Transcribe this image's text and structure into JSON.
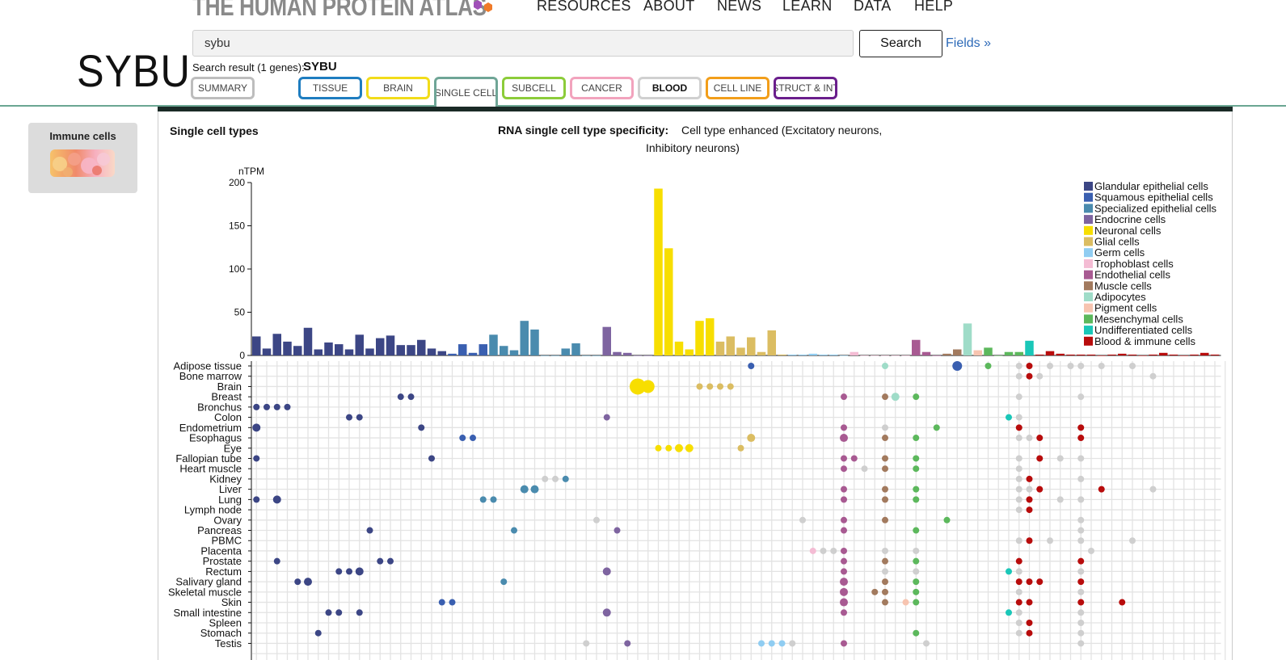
{
  "header": {
    "logo_text": "THE HUMAN PROTEIN ATLAS",
    "nav": [
      "RESOURCES",
      "ABOUT",
      "NEWS",
      "LEARN",
      "DATA",
      "HELP"
    ],
    "gene_title": "SYBU",
    "search": {
      "value": "sybu",
      "button_label": "Search",
      "fields_link": "Fields »"
    },
    "result_prefix": "Search result (1 genes):",
    "result_gene": "SYBU",
    "tabs": [
      {
        "label": "SUMMARY",
        "color": "#bdbdbd"
      },
      {
        "label": "TISSUE",
        "color": "#1e7dc0"
      },
      {
        "label": "BRAIN",
        "color": "#f2dc1a"
      },
      {
        "label": "SINGLE CELL",
        "color": "#6fa596"
      },
      {
        "label": "SUBCELL",
        "color": "#8ccc3a"
      },
      {
        "label": "CANCER",
        "color": "#f2a3bd"
      },
      {
        "label": "BLOOD",
        "color": "#d0d0d0"
      },
      {
        "label": "CELL LINE",
        "color": "#f29e1a"
      },
      {
        "label": "STRUCT & INT",
        "color": "#6a1e8c"
      }
    ]
  },
  "sidebar": {
    "label": "Immune cells"
  },
  "main": {
    "section_title": "Single cell types",
    "specificity_label": "RNA single cell type specificity:",
    "specificity_value_1": "Cell type enhanced (Excitatory neurons,",
    "specificity_value_2": "Inhibitory neurons)"
  },
  "chart_data": {
    "type": "bar",
    "ylabel": "nTPM",
    "ylim": [
      0,
      200
    ],
    "yticks": [
      0,
      50,
      100,
      150,
      200
    ],
    "groups": [
      {
        "name": "Glandular epithelial cells",
        "color": "#3c4685"
      },
      {
        "name": "Squamous epithelial cells",
        "color": "#3a5fb0"
      },
      {
        "name": "Specialized epithelial cells",
        "color": "#4a8bae"
      },
      {
        "name": "Endocrine cells",
        "color": "#7e64a0"
      },
      {
        "name": "Neuronal cells",
        "color": "#f7de00"
      },
      {
        "name": "Glial cells",
        "color": "#dbbd62"
      },
      {
        "name": "Germ cells",
        "color": "#90cdf2"
      },
      {
        "name": "Trophoblast cells",
        "color": "#f4bcd4"
      },
      {
        "name": "Endothelial cells",
        "color": "#a85a92"
      },
      {
        "name": "Muscle cells",
        "color": "#a27a5e"
      },
      {
        "name": "Adipocytes",
        "color": "#9fdcc8"
      },
      {
        "name": "Pigment cells",
        "color": "#f7c4b0"
      },
      {
        "name": "Mesenchymal cells",
        "color": "#5cb85c"
      },
      {
        "name": "Undifferentiated cells",
        "color": "#1ac7b8"
      },
      {
        "name": "Blood & immune cells",
        "color": "#b80c0c"
      }
    ],
    "values": [
      22,
      8,
      25,
      16,
      11,
      32,
      7,
      15,
      13,
      7,
      24,
      8,
      20,
      23,
      12,
      12,
      18,
      8,
      5,
      2,
      13,
      3,
      13,
      24,
      11,
      6,
      40,
      30,
      0,
      0,
      8,
      14,
      0,
      0,
      33,
      4,
      3,
      0,
      0,
      193,
      124,
      16,
      7,
      40,
      43,
      16,
      22,
      9,
      21,
      4,
      29,
      1,
      1,
      1,
      2,
      1,
      1,
      0,
      4,
      0,
      0,
      0,
      0,
      0,
      18,
      4,
      0,
      2,
      7,
      37,
      6,
      9,
      0,
      4,
      4,
      17,
      1,
      5,
      2,
      1,
      1,
      1,
      0,
      1,
      2,
      1,
      0,
      1,
      3,
      1,
      0,
      1,
      3,
      1
    ],
    "bar_groups": [
      0,
      0,
      0,
      0,
      0,
      0,
      0,
      0,
      0,
      0,
      0,
      0,
      0,
      0,
      0,
      0,
      0,
      0,
      0,
      1,
      1,
      1,
      1,
      2,
      2,
      2,
      2,
      2,
      2,
      2,
      2,
      2,
      2,
      2,
      3,
      3,
      3,
      3,
      3,
      4,
      4,
      4,
      4,
      4,
      4,
      5,
      5,
      5,
      5,
      5,
      5,
      5,
      6,
      6,
      6,
      6,
      6,
      6,
      7,
      7,
      7,
      7,
      7,
      7,
      8,
      8,
      8,
      9,
      9,
      10,
      11,
      12,
      12,
      12,
      12,
      13,
      14,
      14,
      14,
      14,
      14,
      14,
      14,
      14,
      14,
      14,
      14,
      14,
      14,
      14,
      14,
      14,
      14,
      14
    ],
    "tissues": [
      "Adipose tissue",
      "Bone marrow",
      "Brain",
      "Breast",
      "Bronchus",
      "Colon",
      "Endometrium",
      "Esophagus",
      "Eye",
      "Fallopian tube",
      "Heart muscle",
      "Kidney",
      "Liver",
      "Lung",
      "Lymph node",
      "Ovary",
      "Pancreas",
      "PBMC",
      "Placenta",
      "Prostate",
      "Rectum",
      "Salivary gland",
      "Skeletal muscle",
      "Skin",
      "Small intestine",
      "Spleen",
      "Stomach",
      "Testis"
    ],
    "dots": [
      [
        0,
        48,
        1,
        4
      ],
      [
        0,
        61,
        10,
        4
      ],
      [
        0,
        68,
        1,
        6
      ],
      [
        0,
        71,
        12,
        4
      ],
      [
        0,
        74,
        0,
        4
      ],
      [
        0,
        75,
        14,
        4
      ],
      [
        0,
        77,
        0,
        4
      ],
      [
        0,
        79,
        0,
        4
      ],
      [
        0,
        80,
        0,
        4
      ],
      [
        0,
        82,
        0,
        4
      ],
      [
        0,
        85,
        0,
        4
      ],
      [
        1,
        74,
        0,
        4
      ],
      [
        1,
        75,
        14,
        4
      ],
      [
        1,
        76,
        0,
        4
      ],
      [
        1,
        87,
        0,
        4
      ],
      [
        2,
        37,
        4,
        10
      ],
      [
        2,
        38,
        4,
        8
      ],
      [
        2,
        43,
        5,
        4
      ],
      [
        2,
        44,
        5,
        4
      ],
      [
        2,
        45,
        5,
        4
      ],
      [
        2,
        46,
        5,
        4
      ],
      [
        3,
        14,
        0,
        4
      ],
      [
        3,
        15,
        0,
        4
      ],
      [
        3,
        57,
        8,
        4
      ],
      [
        3,
        61,
        9,
        4
      ],
      [
        3,
        62,
        10,
        5
      ],
      [
        3,
        64,
        12,
        4
      ],
      [
        3,
        74,
        0,
        4
      ],
      [
        3,
        80,
        0,
        4
      ],
      [
        4,
        0,
        0,
        4
      ],
      [
        4,
        1,
        0,
        4
      ],
      [
        4,
        2,
        0,
        4
      ],
      [
        4,
        3,
        0,
        4
      ],
      [
        5,
        9,
        0,
        4
      ],
      [
        5,
        10,
        0,
        4
      ],
      [
        5,
        34,
        3,
        4
      ],
      [
        5,
        73,
        13,
        4
      ],
      [
        5,
        74,
        0,
        4
      ],
      [
        6,
        0,
        0,
        5
      ],
      [
        6,
        16,
        0,
        4
      ],
      [
        6,
        57,
        8,
        4
      ],
      [
        6,
        61,
        0,
        4
      ],
      [
        6,
        66,
        12,
        4
      ],
      [
        6,
        74,
        14,
        4
      ],
      [
        6,
        80,
        14,
        4
      ],
      [
        7,
        20,
        1,
        4
      ],
      [
        7,
        21,
        1,
        4
      ],
      [
        7,
        48,
        5,
        5
      ],
      [
        7,
        57,
        8,
        5
      ],
      [
        7,
        61,
        9,
        4
      ],
      [
        7,
        64,
        12,
        4
      ],
      [
        7,
        74,
        0,
        4
      ],
      [
        7,
        75,
        0,
        4
      ],
      [
        7,
        76,
        14,
        4
      ],
      [
        7,
        80,
        14,
        4
      ],
      [
        8,
        39,
        4,
        4
      ],
      [
        8,
        40,
        4,
        4
      ],
      [
        8,
        41,
        4,
        5
      ],
      [
        8,
        42,
        4,
        5
      ],
      [
        8,
        47,
        5,
        4
      ],
      [
        9,
        0,
        0,
        4
      ],
      [
        9,
        17,
        0,
        4
      ],
      [
        9,
        57,
        8,
        4
      ],
      [
        9,
        58,
        8,
        4
      ],
      [
        9,
        61,
        9,
        4
      ],
      [
        9,
        64,
        12,
        4
      ],
      [
        9,
        74,
        0,
        4
      ],
      [
        9,
        76,
        14,
        4
      ],
      [
        9,
        78,
        0,
        4
      ],
      [
        9,
        80,
        0,
        4
      ],
      [
        10,
        57,
        8,
        4
      ],
      [
        10,
        59,
        0,
        4
      ],
      [
        10,
        61,
        9,
        4
      ],
      [
        10,
        64,
        12,
        4
      ],
      [
        10,
        74,
        0,
        4
      ],
      [
        11,
        28,
        0,
        4
      ],
      [
        11,
        29,
        0,
        4
      ],
      [
        11,
        30,
        2,
        4
      ],
      [
        11,
        74,
        0,
        4
      ],
      [
        11,
        75,
        14,
        4
      ],
      [
        11,
        80,
        0,
        4
      ],
      [
        12,
        26,
        2,
        5
      ],
      [
        12,
        27,
        2,
        5
      ],
      [
        12,
        57,
        8,
        4
      ],
      [
        12,
        61,
        9,
        4
      ],
      [
        12,
        64,
        12,
        4
      ],
      [
        12,
        74,
        0,
        4
      ],
      [
        12,
        75,
        0,
        4
      ],
      [
        12,
        76,
        14,
        4
      ],
      [
        12,
        82,
        14,
        4
      ],
      [
        12,
        87,
        0,
        4
      ],
      [
        13,
        0,
        0,
        4
      ],
      [
        13,
        2,
        0,
        5
      ],
      [
        13,
        22,
        2,
        4
      ],
      [
        13,
        23,
        2,
        4
      ],
      [
        13,
        57,
        8,
        4
      ],
      [
        13,
        61,
        9,
        4
      ],
      [
        13,
        64,
        12,
        4
      ],
      [
        13,
        74,
        0,
        4
      ],
      [
        13,
        75,
        14,
        4
      ],
      [
        13,
        78,
        0,
        4
      ],
      [
        13,
        80,
        0,
        4
      ],
      [
        14,
        74,
        0,
        4
      ],
      [
        14,
        75,
        14,
        4
      ],
      [
        15,
        33,
        0,
        4
      ],
      [
        15,
        53,
        0,
        4
      ],
      [
        15,
        57,
        8,
        4
      ],
      [
        15,
        61,
        9,
        4
      ],
      [
        15,
        67,
        12,
        4
      ],
      [
        15,
        80,
        0,
        4
      ],
      [
        16,
        11,
        0,
        4
      ],
      [
        16,
        25,
        2,
        4
      ],
      [
        16,
        35,
        3,
        4
      ],
      [
        16,
        57,
        8,
        4
      ],
      [
        16,
        64,
        12,
        4
      ],
      [
        16,
        80,
        0,
        4
      ],
      [
        17,
        74,
        0,
        4
      ],
      [
        17,
        75,
        14,
        4
      ],
      [
        17,
        77,
        0,
        4
      ],
      [
        17,
        80,
        0,
        4
      ],
      [
        17,
        85,
        0,
        4
      ],
      [
        18,
        54,
        7,
        4
      ],
      [
        18,
        55,
        0,
        4
      ],
      [
        18,
        56,
        0,
        4
      ],
      [
        18,
        57,
        8,
        4
      ],
      [
        18,
        61,
        0,
        4
      ],
      [
        18,
        64,
        0,
        4
      ],
      [
        18,
        81,
        0,
        4
      ],
      [
        19,
        2,
        0,
        4
      ],
      [
        19,
        12,
        0,
        4
      ],
      [
        19,
        13,
        0,
        4
      ],
      [
        19,
        57,
        8,
        4
      ],
      [
        19,
        61,
        9,
        4
      ],
      [
        19,
        64,
        12,
        4
      ],
      [
        19,
        74,
        14,
        4
      ],
      [
        19,
        80,
        14,
        4
      ],
      [
        20,
        8,
        0,
        4
      ],
      [
        20,
        9,
        0,
        4
      ],
      [
        20,
        10,
        0,
        5
      ],
      [
        20,
        34,
        3,
        5
      ],
      [
        20,
        57,
        8,
        4
      ],
      [
        20,
        61,
        0,
        4
      ],
      [
        20,
        64,
        0,
        4
      ],
      [
        20,
        73,
        13,
        4
      ],
      [
        20,
        74,
        0,
        4
      ],
      [
        20,
        80,
        0,
        4
      ],
      [
        21,
        4,
        0,
        4
      ],
      [
        21,
        5,
        0,
        5
      ],
      [
        21,
        24,
        2,
        4
      ],
      [
        21,
        57,
        8,
        5
      ],
      [
        21,
        61,
        9,
        4
      ],
      [
        21,
        64,
        12,
        4
      ],
      [
        21,
        74,
        14,
        4
      ],
      [
        21,
        75,
        14,
        4
      ],
      [
        21,
        76,
        14,
        4
      ],
      [
        21,
        80,
        14,
        4
      ],
      [
        22,
        57,
        8,
        5
      ],
      [
        22,
        60,
        9,
        4
      ],
      [
        22,
        61,
        9,
        4
      ],
      [
        22,
        64,
        12,
        4
      ],
      [
        22,
        74,
        0,
        4
      ],
      [
        22,
        80,
        0,
        4
      ],
      [
        23,
        18,
        1,
        4
      ],
      [
        23,
        19,
        1,
        4
      ],
      [
        23,
        57,
        8,
        5
      ],
      [
        23,
        61,
        9,
        4
      ],
      [
        23,
        63,
        11,
        4
      ],
      [
        23,
        64,
        12,
        4
      ],
      [
        23,
        74,
        14,
        4
      ],
      [
        23,
        75,
        14,
        4
      ],
      [
        23,
        80,
        14,
        4
      ],
      [
        23,
        84,
        14,
        4
      ],
      [
        24,
        7,
        0,
        4
      ],
      [
        24,
        8,
        0,
        4
      ],
      [
        24,
        10,
        0,
        4
      ],
      [
        24,
        34,
        3,
        5
      ],
      [
        24,
        57,
        8,
        4
      ],
      [
        24,
        73,
        13,
        4
      ],
      [
        24,
        74,
        0,
        4
      ],
      [
        24,
        80,
        0,
        4
      ],
      [
        25,
        74,
        0,
        4
      ],
      [
        25,
        75,
        14,
        4
      ],
      [
        25,
        80,
        0,
        4
      ],
      [
        26,
        6,
        0,
        4
      ],
      [
        26,
        64,
        12,
        4
      ],
      [
        26,
        74,
        0,
        4
      ],
      [
        26,
        75,
        14,
        4
      ],
      [
        26,
        80,
        0,
        4
      ],
      [
        27,
        32,
        0,
        4
      ],
      [
        27,
        36,
        3,
        4
      ],
      [
        27,
        49,
        6,
        4
      ],
      [
        27,
        50,
        6,
        4
      ],
      [
        27,
        51,
        6,
        4
      ],
      [
        27,
        52,
        0,
        4
      ],
      [
        27,
        57,
        8,
        4
      ],
      [
        27,
        65,
        0,
        4
      ],
      [
        27,
        80,
        0,
        4
      ]
    ]
  }
}
